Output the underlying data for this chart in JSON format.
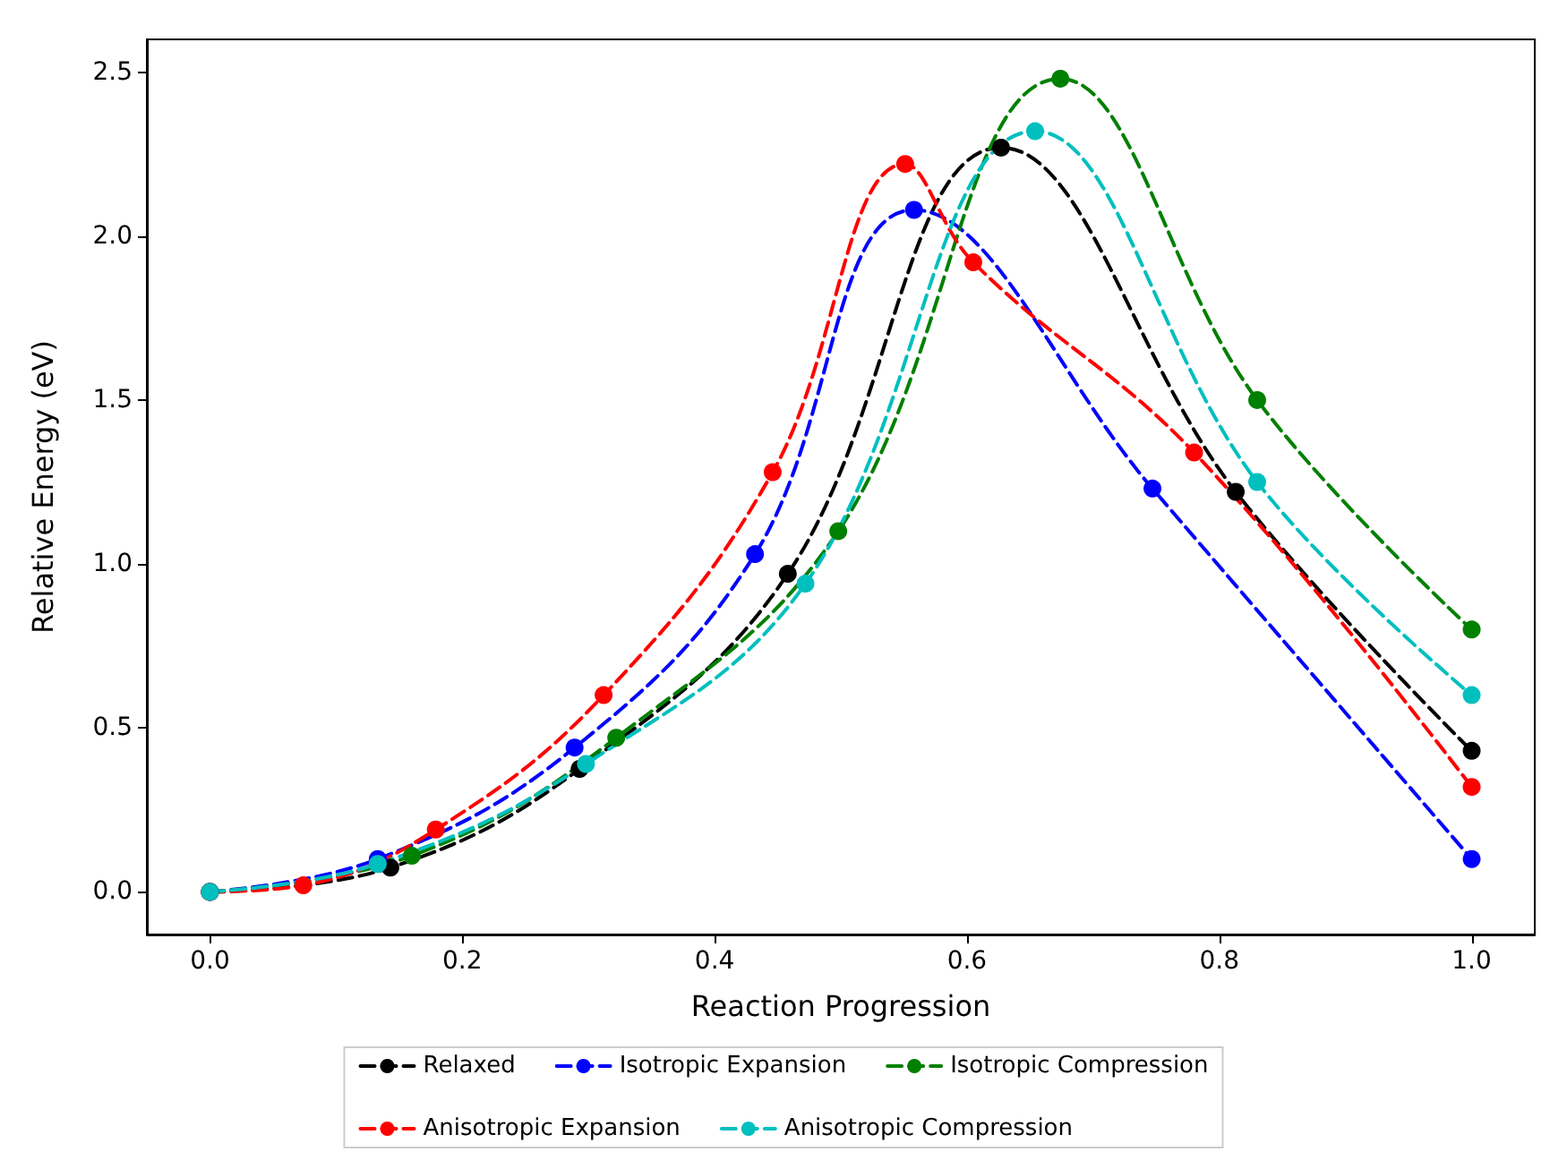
{
  "chart_data": {
    "type": "line",
    "xlabel": "Reaction Progression",
    "ylabel": "Relative Energy (eV)",
    "xlim": [
      -0.05,
      1.05
    ],
    "ylim": [
      -0.13,
      2.6
    ],
    "xticks": [
      {
        "value": 0,
        "label": "0.0"
      },
      0.2,
      0.4,
      0.6,
      0.8,
      {
        "value": 1,
        "label": "1.0"
      }
    ],
    "yticks": [
      {
        "value": 0,
        "label": "0.0"
      },
      0.5,
      {
        "value": 1,
        "label": "1.0"
      },
      1.5,
      {
        "value": 2,
        "label": "2.0"
      },
      2.5
    ],
    "grid": false,
    "legend": "bottom",
    "marker": "circle",
    "line_style": "dashed",
    "series": [
      {
        "name": "Relaxed",
        "color": "#000000",
        "x": [
          0,
          0.143,
          0.293,
          0.458,
          0.627,
          0.813,
          1.0
        ],
        "values": [
          0,
          0.074,
          0.375,
          0.97,
          2.27,
          1.22,
          0.43
        ]
      },
      {
        "name": "Isotropic Expansion",
        "color": "#0000ff",
        "x": [
          0,
          0.133,
          0.289,
          0.432,
          0.558,
          0.747,
          1.0
        ],
        "values": [
          0,
          0.1,
          0.44,
          1.03,
          2.08,
          1.23,
          0.1
        ]
      },
      {
        "name": "Isotropic Compression",
        "color": "#008000",
        "x": [
          0,
          0.16,
          0.322,
          0.498,
          0.674,
          0.83,
          1.0
        ],
        "values": [
          0,
          0.11,
          0.47,
          1.1,
          2.48,
          1.5,
          0.8
        ]
      },
      {
        "name": "Anisotropic Expansion",
        "color": "#ff0000",
        "x": [
          0,
          0.074,
          0.179,
          0.312,
          0.446,
          0.551,
          0.605,
          0.78,
          1.0
        ],
        "values": [
          0,
          0.02,
          0.19,
          0.6,
          1.28,
          2.22,
          1.92,
          1.34,
          0.32
        ]
      },
      {
        "name": "Anisotropic Compression",
        "color": "#00bfbf",
        "x": [
          0,
          0.133,
          0.298,
          0.472,
          0.654,
          0.83,
          1.0
        ],
        "values": [
          0,
          0.085,
          0.39,
          0.94,
          2.32,
          1.25,
          0.6
        ]
      }
    ]
  }
}
